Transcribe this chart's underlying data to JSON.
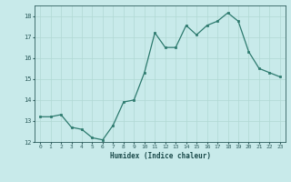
{
  "x": [
    0,
    1,
    2,
    3,
    4,
    5,
    6,
    7,
    8,
    9,
    10,
    11,
    12,
    13,
    14,
    15,
    16,
    17,
    18,
    19,
    20,
    21,
    22,
    23
  ],
  "y": [
    13.2,
    13.2,
    13.3,
    12.7,
    12.6,
    12.2,
    12.1,
    12.8,
    13.9,
    14.0,
    15.3,
    17.2,
    16.5,
    16.5,
    17.55,
    17.1,
    17.55,
    17.75,
    18.15,
    17.75,
    16.3,
    15.5,
    15.3,
    15.1
  ],
  "xlabel": "Humidex (Indice chaleur)",
  "xlim": [
    -0.5,
    23.5
  ],
  "ylim": [
    12,
    18.5
  ],
  "yticks": [
    12,
    13,
    14,
    15,
    16,
    17,
    18
  ],
  "xticks": [
    0,
    1,
    2,
    3,
    4,
    5,
    6,
    7,
    8,
    9,
    10,
    11,
    12,
    13,
    14,
    15,
    16,
    17,
    18,
    19,
    20,
    21,
    22,
    23
  ],
  "bg_color": "#c8eaea",
  "line_color": "#2d7a6e",
  "grid_color": "#b0d8d4",
  "tick_color": "#2d5c5c",
  "label_color": "#1a4a4a"
}
